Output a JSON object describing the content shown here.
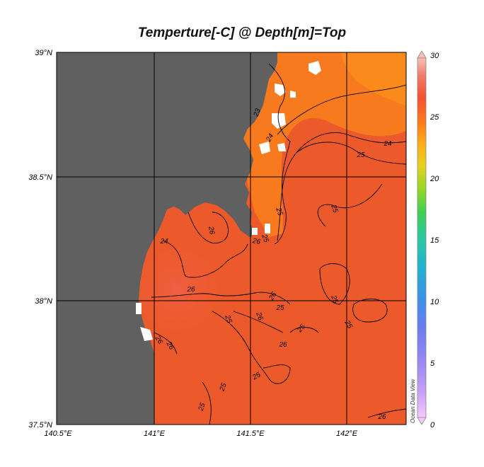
{
  "title": "Temperture[-C] @ Depth[m]=Top",
  "map": {
    "lat_ticks": [
      "39°N",
      "38.5°N",
      "38°N",
      "37.5°N"
    ],
    "lon_ticks": [
      "140.5°E",
      "141°E",
      "141.5°E",
      "142°E"
    ],
    "lon_range": [
      140.5,
      142.3
    ],
    "lat_range": [
      37.5,
      39.0
    ],
    "contour_labels": [
      "23",
      "24",
      "25",
      "26",
      "24",
      "25",
      "25",
      "26",
      "25",
      "24",
      "26",
      "26",
      "25",
      "25",
      "25",
      "25",
      "25",
      "26",
      "26",
      "26",
      "25",
      "25",
      "25",
      "26",
      "26"
    ],
    "colors": {
      "land": "#606060",
      "ocean_main": "#ee5a2a",
      "ocean_warm": "#f05a3a",
      "ocean_cool": "#ff8c1a",
      "missing": "#ffffff"
    }
  },
  "colorbar": {
    "ticks": [
      "30",
      "25",
      "20",
      "15",
      "10",
      "5",
      "0"
    ],
    "range": [
      0,
      30
    ],
    "stops": [
      "#f7c8ff",
      "#b88cf0",
      "#7878f0",
      "#3a8ee8",
      "#1fb0d8",
      "#2ac8a8",
      "#37d060",
      "#7ad82a",
      "#c8e020",
      "#f4c020",
      "#ff9010",
      "#ff6020",
      "#f05040",
      "#f48070",
      "#f8c0b8"
    ],
    "credit": "Ocean Data View"
  }
}
